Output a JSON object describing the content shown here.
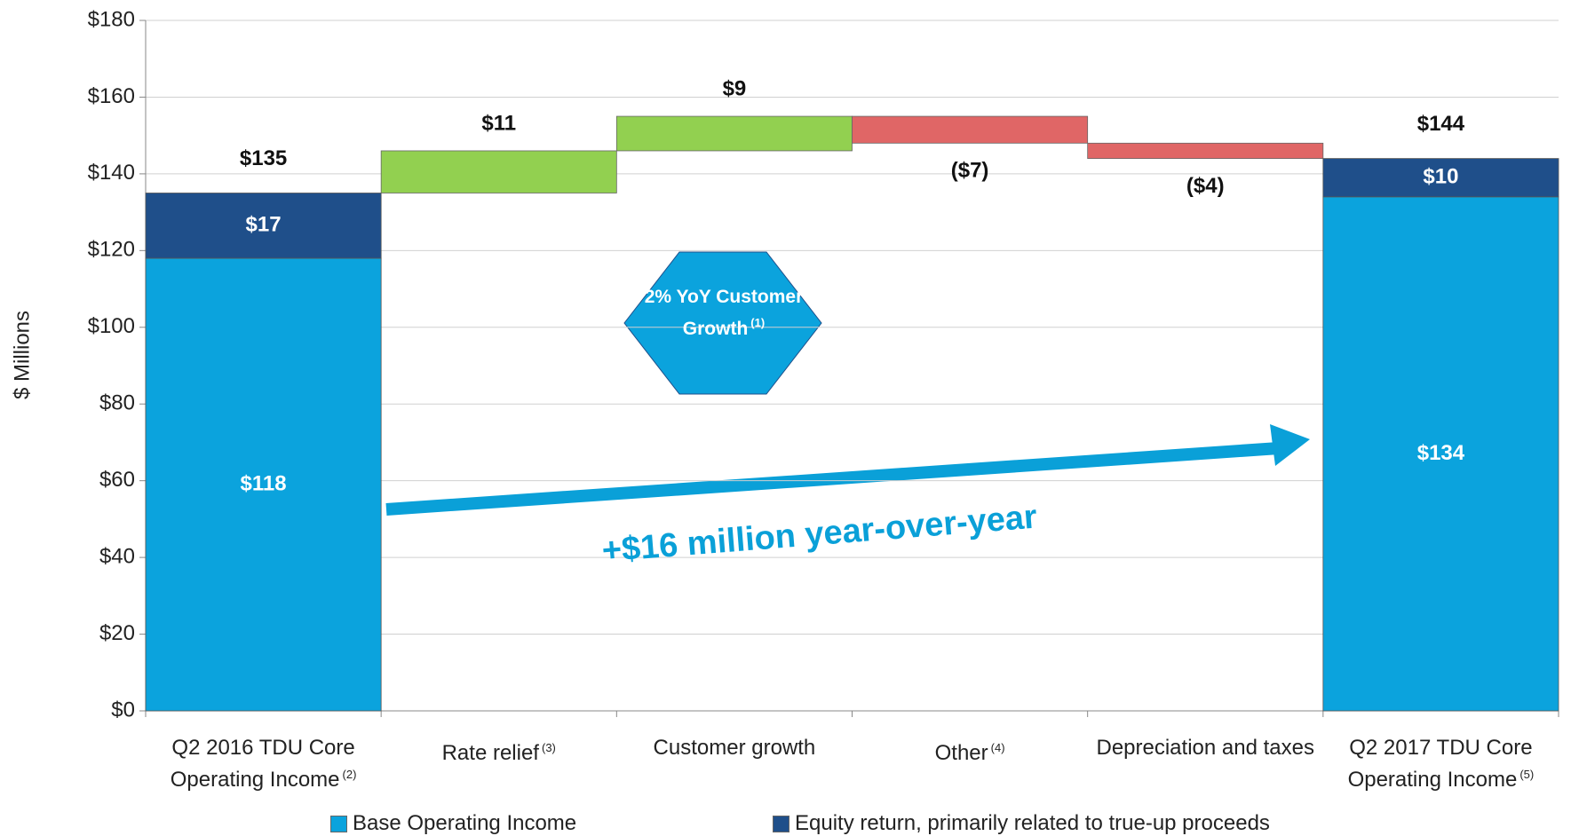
{
  "chart_data": {
    "type": "waterfall",
    "ylabel": "$ Millions",
    "categories": [
      "Q2 2016 TDU Core Operating Income",
      "Rate relief",
      "Customer growth",
      "Other",
      "Depreciation and taxes",
      "Q2 2017 TDU Core Operating Income"
    ],
    "category_notes": [
      "(2)",
      "(3)",
      null,
      "(4)",
      null,
      "(5)"
    ],
    "series": [
      {
        "name": "Base Operating Income",
        "color": "#0ba3dd",
        "values": [
          118,
          null,
          null,
          null,
          null,
          134
        ],
        "value_labels": [
          "$118",
          null,
          null,
          null,
          null,
          "$134"
        ]
      },
      {
        "name": "Equity return, primarily related to true-up proceeds",
        "color": "#1f4f8a",
        "values": [
          17,
          null,
          null,
          null,
          null,
          10
        ],
        "value_labels": [
          "$17",
          null,
          null,
          null,
          null,
          "$10"
        ]
      }
    ],
    "changes": {
      "values": [
        null,
        11,
        9,
        -7,
        -4,
        null
      ],
      "value_labels": [
        null,
        "$11",
        "$9",
        "($7)",
        "($4)",
        null
      ],
      "increase_color": "#92d050",
      "decrease_color": "#e06666"
    },
    "totals": {
      "values": [
        135,
        null,
        null,
        null,
        null,
        144
      ],
      "value_labels": [
        "$135",
        null,
        null,
        null,
        null,
        "$144"
      ]
    },
    "ylim": [
      0,
      180
    ],
    "yticks": [
      {
        "value": 0,
        "label": "$0"
      },
      {
        "value": 20,
        "label": "$20"
      },
      {
        "value": 40,
        "label": "$40"
      },
      {
        "value": 60,
        "label": "$60"
      },
      {
        "value": 80,
        "label": "$80"
      },
      {
        "value": 100,
        "label": "$100"
      },
      {
        "value": 120,
        "label": "$120"
      },
      {
        "value": 140,
        "label": "$140"
      },
      {
        "value": 160,
        "label": "$160"
      },
      {
        "value": 180,
        "label": "$180"
      }
    ],
    "grid": true,
    "annotations": {
      "hexagon": "2% YoY Customer Growth",
      "hexagon_note": "(1)",
      "arrow": "+$16 million year-over-year"
    }
  }
}
